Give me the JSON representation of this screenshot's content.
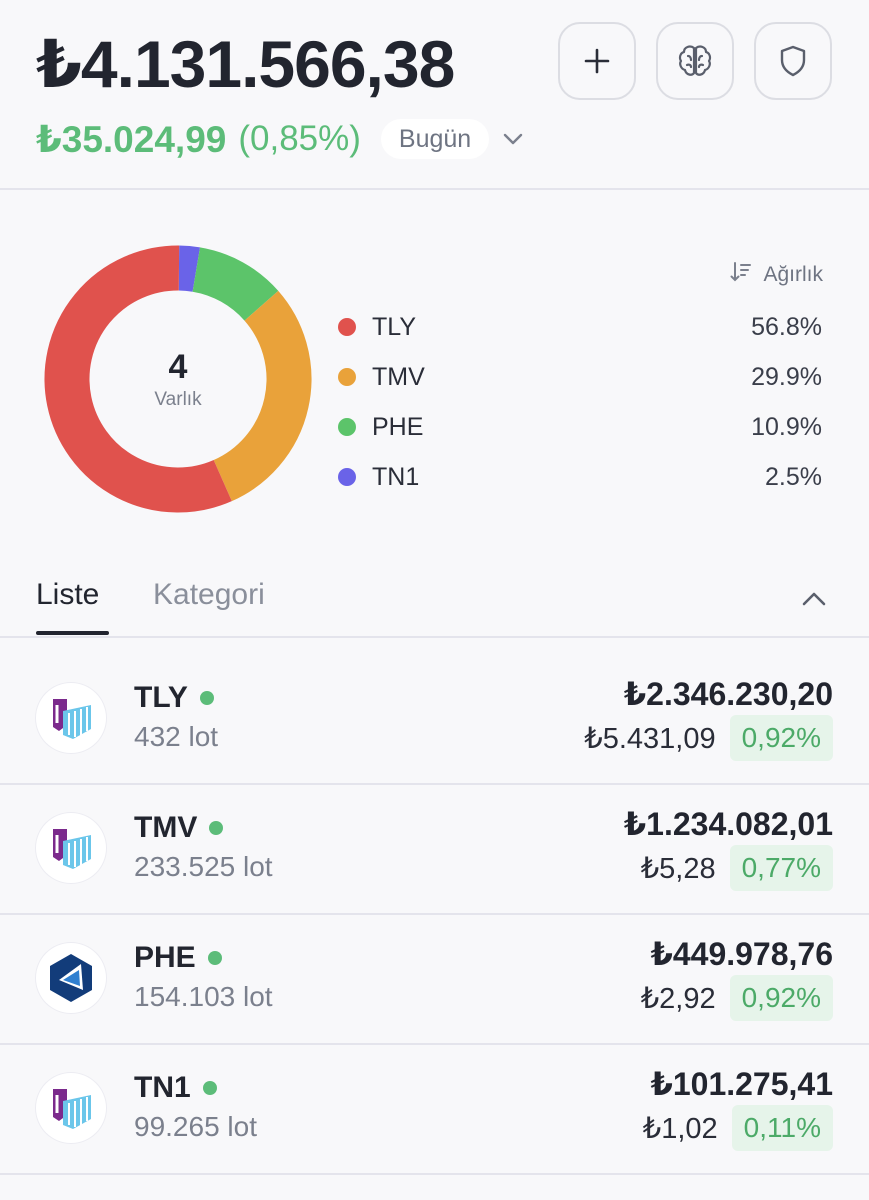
{
  "header": {
    "total_value": "₺4.131.566,38",
    "daily_change": "₺35.024,99",
    "daily_change_pct": "(0,85%)",
    "period": "Bugün",
    "buttons": [
      {
        "name": "add",
        "icon": "plus-icon"
      },
      {
        "name": "ai",
        "icon": "brain-icon"
      },
      {
        "name": "security",
        "icon": "shield-icon"
      }
    ]
  },
  "allocation": {
    "count": "4",
    "count_label": "Varlık",
    "sort_label": "Ağırlık",
    "sort_icon": "sort-descending-icon",
    "items": [
      {
        "name": "TLY",
        "pct": "56.8%",
        "color": "#e0524d"
      },
      {
        "name": "TMV",
        "pct": "29.9%",
        "color": "#e9a23a"
      },
      {
        "name": "PHE",
        "pct": "10.9%",
        "color": "#5cc46a"
      },
      {
        "name": "TN1",
        "pct": "2.5%",
        "color": "#6a63e8"
      }
    ]
  },
  "chart_data": {
    "type": "pie",
    "categories": [
      "TLY",
      "TMV",
      "PHE",
      "TN1"
    ],
    "values": [
      56.8,
      29.9,
      10.9,
      2.5
    ],
    "colors": [
      "#e0524d",
      "#e9a23a",
      "#5cc46a",
      "#6a63e8"
    ],
    "center_text": "4",
    "center_subtext": "Varlık"
  },
  "tabs": {
    "active": "Liste",
    "inactive": "Kategori",
    "collapse_icon": "chevron-up-icon"
  },
  "holdings": [
    {
      "ticker": "TLY",
      "lots": "432 lot",
      "value": "₺2.346.230,20",
      "price": "₺5.431,09",
      "change": "0,92%",
      "logo": "stacked-bars-logo-icon"
    },
    {
      "ticker": "TMV",
      "lots": "233.525 lot",
      "value": "₺1.234.082,01",
      "price": "₺5,28",
      "change": "0,77%",
      "logo": "stacked-bars-logo-icon"
    },
    {
      "ticker": "PHE",
      "lots": "154.103 lot",
      "value": "₺449.978,76",
      "price": "₺2,92",
      "change": "0,92%",
      "logo": "hexagon-logo-icon"
    },
    {
      "ticker": "TN1",
      "lots": "99.265 lot",
      "value": "₺101.275,41",
      "price": "₺1,02",
      "change": "0,11%",
      "logo": "stacked-bars-logo-icon"
    }
  ],
  "colors": {
    "positive": "#5cbc79",
    "text_primary": "#22252f",
    "text_secondary": "#7b808d"
  }
}
